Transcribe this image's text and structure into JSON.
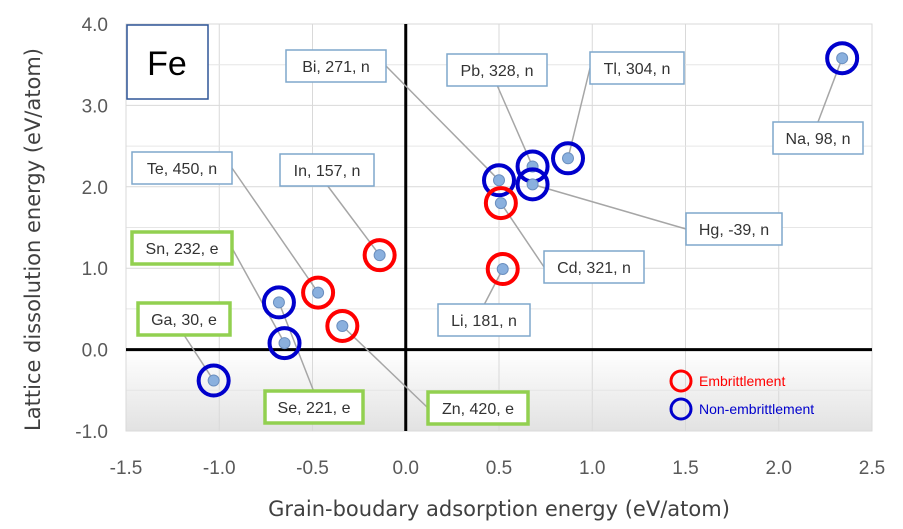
{
  "chart_data": {
    "type": "scatter",
    "element": "Fe",
    "xlabel": "Grain-boudary adsorption energy (eV/atom)",
    "ylabel": "Lattice dissolution energy (eV/atom)",
    "xlim": [
      -1.5,
      2.5
    ],
    "ylim": [
      -1.0,
      4.0
    ],
    "x_ticks": [
      "-1.5",
      "-1.0",
      "-0.5",
      "0.0",
      "0.5",
      "1.0",
      "1.5",
      "2.0",
      "2.5"
    ],
    "y_ticks": [
      "-1.0",
      "0.0",
      "1.0",
      "2.0",
      "3.0",
      "4.0"
    ],
    "grid": true,
    "legend_position": "bottom-right",
    "legend": [
      {
        "name": "Embrittlement",
        "color": "#ff0000"
      },
      {
        "name": "Non-embrittlement",
        "color": "#0000cc"
      }
    ],
    "points": [
      {
        "label": "Bi, 271, n",
        "x": 0.5,
        "y": 2.08,
        "class": "non-embrittlement"
      },
      {
        "label": "Pb, 328, n",
        "x": 0.68,
        "y": 2.25,
        "class": "non-embrittlement"
      },
      {
        "label": "Tl, 304, n",
        "x": 0.87,
        "y": 2.35,
        "class": "non-embrittlement"
      },
      {
        "label": "Na, 98, n",
        "x": 2.34,
        "y": 3.58,
        "class": "non-embrittlement"
      },
      {
        "label": "Te, 450, n",
        "x": -0.47,
        "y": 0.7,
        "class": "embrittlement"
      },
      {
        "label": "In, 157, n",
        "x": -0.14,
        "y": 1.16,
        "class": "embrittlement"
      },
      {
        "label": "Hg, -39, n",
        "x": 0.68,
        "y": 2.03,
        "class": "non-embrittlement"
      },
      {
        "label": "Sn, 232, e",
        "x": -0.65,
        "y": 0.08,
        "class": "non-embrittlement"
      },
      {
        "label": "Cd, 321, n",
        "x": 0.51,
        "y": 1.8,
        "class": "embrittlement"
      },
      {
        "label": "Ga, 30, e",
        "x": -1.03,
        "y": -0.38,
        "class": "non-embrittlement"
      },
      {
        "label": "Li, 181, n",
        "x": 0.52,
        "y": 0.99,
        "class": "embrittlement"
      },
      {
        "label": "Se, 221, e",
        "x": -0.68,
        "y": 0.58,
        "class": "non-embrittlement"
      },
      {
        "label": "Zn, 420, e",
        "x": -0.34,
        "y": 0.29,
        "class": "embrittlement"
      }
    ]
  }
}
